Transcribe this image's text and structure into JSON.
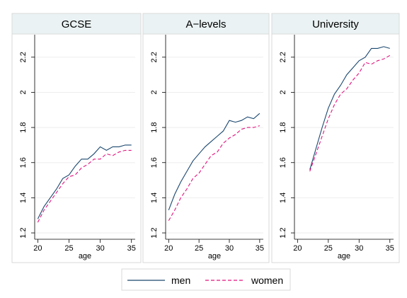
{
  "chart_data": [
    {
      "type": "line",
      "title": "GCSE",
      "xlabel": "age",
      "ylabel": "",
      "xlim": [
        19.5,
        35.6
      ],
      "ylim": [
        1.18,
        2.32
      ],
      "xticks": [
        20,
        25,
        30,
        35
      ],
      "yticks": [
        1.2,
        1.4,
        1.6,
        1.8,
        2,
        2.2
      ],
      "x": [
        20,
        21,
        22,
        23,
        24,
        25,
        26,
        27,
        28,
        29,
        30,
        31,
        32,
        33,
        34,
        35
      ],
      "series": [
        {
          "name": "men",
          "values": [
            1.28,
            1.35,
            1.4,
            1.45,
            1.51,
            1.53,
            1.58,
            1.62,
            1.62,
            1.65,
            1.69,
            1.67,
            1.69,
            1.69,
            1.7,
            1.7
          ]
        },
        {
          "name": "women",
          "values": [
            1.26,
            1.33,
            1.38,
            1.43,
            1.48,
            1.52,
            1.53,
            1.57,
            1.59,
            1.62,
            1.62,
            1.65,
            1.64,
            1.66,
            1.67,
            1.67
          ]
        }
      ]
    },
    {
      "type": "line",
      "title": "A−levels",
      "xlabel": "age",
      "ylabel": "",
      "xlim": [
        19.5,
        35.6
      ],
      "ylim": [
        1.18,
        2.32
      ],
      "xticks": [
        20,
        25,
        30,
        35
      ],
      "yticks": [
        1.2,
        1.4,
        1.6,
        1.8,
        2,
        2.2
      ],
      "x": [
        20,
        21,
        22,
        23,
        24,
        25,
        26,
        27,
        28,
        29,
        30,
        31,
        32,
        33,
        34,
        35
      ],
      "series": [
        {
          "name": "men",
          "values": [
            1.33,
            1.42,
            1.49,
            1.55,
            1.61,
            1.65,
            1.69,
            1.72,
            1.75,
            1.78,
            1.84,
            1.83,
            1.84,
            1.86,
            1.85,
            1.88
          ]
        },
        {
          "name": "women",
          "values": [
            1.27,
            1.33,
            1.4,
            1.45,
            1.51,
            1.54,
            1.59,
            1.64,
            1.66,
            1.71,
            1.74,
            1.76,
            1.79,
            1.8,
            1.8,
            1.81
          ]
        }
      ]
    },
    {
      "type": "line",
      "title": "University",
      "xlabel": "age",
      "ylabel": "",
      "xlim": [
        19.5,
        35.6
      ],
      "ylim": [
        1.18,
        2.32
      ],
      "xticks": [
        20,
        25,
        30,
        35
      ],
      "yticks": [
        1.2,
        1.4,
        1.6,
        1.8,
        2,
        2.2
      ],
      "x": [
        22,
        23,
        24,
        25,
        26,
        27,
        28,
        29,
        30,
        31,
        32,
        33,
        34,
        35
      ],
      "series": [
        {
          "name": "men",
          "values": [
            1.56,
            1.68,
            1.8,
            1.91,
            1.99,
            2.04,
            2.1,
            2.14,
            2.18,
            2.2,
            2.25,
            2.25,
            2.26,
            2.25
          ]
        },
        {
          "name": "women",
          "values": [
            1.55,
            1.65,
            1.75,
            1.85,
            1.93,
            1.99,
            2.02,
            2.07,
            2.11,
            2.17,
            2.16,
            2.18,
            2.19,
            2.21
          ]
        }
      ]
    }
  ],
  "legend": {
    "placement": "bottom",
    "items": [
      {
        "label": "men",
        "color": "#1a476f",
        "dash": "solid"
      },
      {
        "label": "women",
        "color": "#e2137e",
        "dash": "dashed"
      }
    ]
  },
  "colors": {
    "men": "#1a476f",
    "women": "#e2137e"
  }
}
